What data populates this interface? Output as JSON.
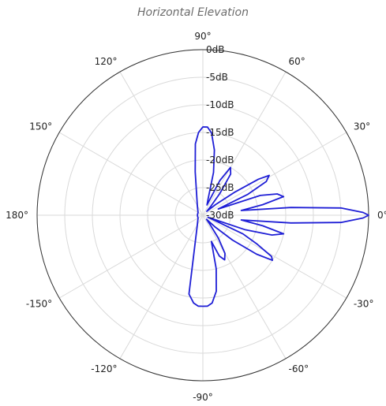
{
  "chart_data": {
    "type": "line",
    "subtype": "polar",
    "title": "Horizontal Elevation",
    "angle_tick_labels": [
      "0°",
      "30°",
      "60°",
      "90°",
      "120°",
      "150°",
      "180°",
      "-150°",
      "-120°",
      "-90°",
      "-60°",
      "-30°"
    ],
    "angle_ticks_deg": [
      0,
      30,
      60,
      90,
      120,
      150,
      180,
      210,
      240,
      270,
      300,
      330
    ],
    "radial_tick_labels": [
      "0dB",
      "-5dB",
      "-10dB",
      "-15dB",
      "-20dB",
      "-25dB",
      "-30dB"
    ],
    "radial_ticks_db": [
      0,
      -5,
      -10,
      -15,
      -20,
      -25,
      -30
    ],
    "rlim": [
      -30,
      0
    ],
    "grid": true,
    "colors": {
      "series": "#1f1fd6",
      "grid": "#d9d9d9",
      "frame": "#333333",
      "title": "#6b6b6b"
    },
    "series": [
      {
        "angle_deg": [
          -180,
          -150,
          -120,
          -100,
          -96,
          -93,
          -90,
          -87,
          -84,
          -80,
          -76,
          -72,
          -68,
          -64,
          -60,
          -56,
          -52,
          -48,
          -44,
          -40,
          -36,
          -33,
          -31,
          -28,
          -25,
          -22,
          -19,
          -16,
          -13,
          -10,
          -7,
          -5,
          -3,
          -1,
          0,
          1,
          3,
          5,
          7,
          10,
          13,
          16,
          19,
          22,
          25,
          28,
          31,
          33,
          36,
          40,
          44,
          48,
          52,
          56,
          60,
          64,
          68,
          72,
          76,
          80,
          84,
          87,
          90,
          93,
          96,
          100,
          120,
          150,
          180
        ],
        "db": [
          -29,
          -29,
          -28,
          -15.5,
          -14,
          -13.5,
          -13.5,
          -13.5,
          -14,
          -16,
          -20,
          -25,
          -22,
          -21,
          -22,
          -25,
          -28,
          -29,
          -27,
          -23,
          -18,
          -15,
          -15.5,
          -19,
          -22,
          -29,
          -22,
          -17,
          -15,
          -19,
          -23,
          -14,
          -5,
          -1,
          0,
          -1,
          -5,
          -14,
          -23,
          -19,
          -15,
          -16,
          -19,
          -27,
          -21,
          -17,
          -16,
          -18,
          -23,
          -27,
          -29,
          -28,
          -25,
          -21,
          -20,
          -23,
          -28,
          -27,
          -22,
          -18,
          -15,
          -14,
          -14,
          -15,
          -17,
          -22,
          -28,
          -29,
          -29
        ]
      }
    ]
  }
}
